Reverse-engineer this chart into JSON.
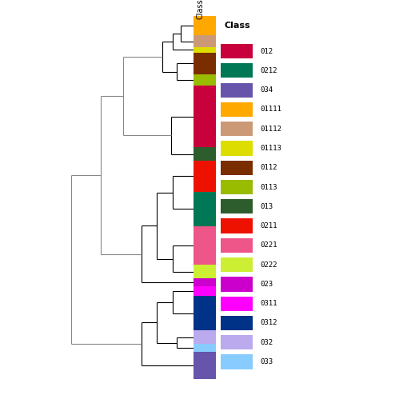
{
  "segments": [
    [
      "01111",
      1.0
    ],
    [
      "01112",
      0.6
    ],
    [
      "01113",
      0.3
    ],
    [
      "0112",
      1.1
    ],
    [
      "0113",
      0.6
    ],
    [
      "012",
      3.2
    ],
    [
      "013",
      0.7
    ],
    [
      "0211",
      1.6
    ],
    [
      "0212",
      1.8
    ],
    [
      "0221",
      2.0
    ],
    [
      "0222",
      0.7
    ],
    [
      "023",
      0.4
    ],
    [
      "0311",
      0.5
    ],
    [
      "0312",
      1.8
    ],
    [
      "032",
      0.7
    ],
    [
      "033",
      0.4
    ],
    [
      "034",
      1.4
    ]
  ],
  "colors_map": {
    "012": "#C8003C",
    "0212": "#007755",
    "034": "#6655AA",
    "01111": "#FFA800",
    "01112": "#CC9977",
    "01113": "#DDDD00",
    "0112": "#7A2E00",
    "0113": "#99BB00",
    "013": "#2D5C2D",
    "0211": "#EE1100",
    "0221": "#EE5588",
    "0222": "#CCEE33",
    "023": "#CC00CC",
    "0311": "#FF00FF",
    "0312": "#003388",
    "032": "#BBAAEE",
    "033": "#88CCFF"
  },
  "legend_entries": [
    [
      "012",
      "#C8003C"
    ],
    [
      "0212",
      "#007755"
    ],
    [
      "034",
      "#6655AA"
    ],
    [
      "01111",
      "#FFA800"
    ],
    [
      "01112",
      "#CC9977"
    ],
    [
      "01113",
      "#DDDD00"
    ],
    [
      "0112",
      "#7A2E00"
    ],
    [
      "0113",
      "#99BB00"
    ],
    [
      "013",
      "#2D5C2D"
    ],
    [
      "0211",
      "#EE1100"
    ],
    [
      "0221",
      "#EE5588"
    ],
    [
      "0222",
      "#CCEE33"
    ],
    [
      "023",
      "#CC00CC"
    ],
    [
      "0311",
      "#FF00FF"
    ],
    [
      "0312",
      "#003388"
    ],
    [
      "032",
      "#BBAAEE"
    ],
    [
      "033",
      "#88CCFF"
    ]
  ],
  "dendro_color": "black",
  "dendro_color_gray": "#888888",
  "lw": 0.8,
  "fig_w": 5.04,
  "fig_h": 5.04,
  "dpi": 100
}
